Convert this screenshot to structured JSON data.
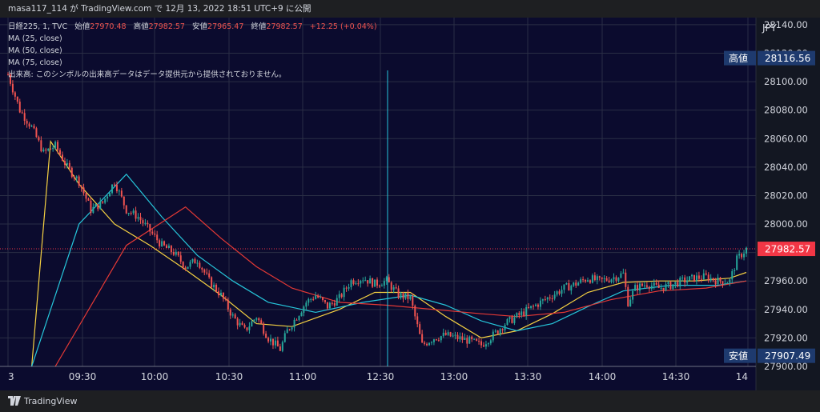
{
  "header": {
    "text": "masa117_114 が TradingView.com で 12月 13, 2022 18:51 UTC+9 に公開"
  },
  "legend": {
    "symbol": "日経225, 1, TVC",
    "open_label": "始値",
    "open_value": "27970.48",
    "high_label": "高値",
    "high_value": "27982.57",
    "low_label": "安値",
    "low_value": "27965.47",
    "close_label": "終値",
    "close_value": "27982.57",
    "change": "+12.25 (+0.04%)",
    "ma_lines": [
      "MA (25, close)",
      "MA (50, close)",
      "MA (75, close)"
    ],
    "volume_note": "出来高: このシンボルの出来高データはデータ提供元から提供されておりません。"
  },
  "footer": {
    "brand": "TradingView"
  },
  "colors": {
    "background": "#0b0b2e",
    "up": "#26a69a",
    "down": "#ef5350",
    "ma25": "#f5d142",
    "ma50": "#26c6da",
    "ma75": "#e53935",
    "price_tag": "#f23645",
    "level_tag": "#1e3a6e"
  },
  "chart_data": {
    "type": "candlestick",
    "currency": "JPY",
    "x_ticks": [
      "3",
      "09:30",
      "10:00",
      "10:30",
      "11:00",
      "12:30",
      "13:00",
      "13:30",
      "14:00",
      "14:30",
      "14"
    ],
    "y_ticks": [
      27900,
      27920,
      27940,
      27960,
      27980,
      28000,
      28020,
      28040,
      28060,
      28080,
      28100,
      28120,
      28140
    ],
    "ylim": [
      27900,
      28145
    ],
    "current_price": 27982.57,
    "high_marker": {
      "label": "高値",
      "value": 28116.56
    },
    "low_marker": {
      "label": "安値",
      "value": 27907.49
    },
    "price_path": [
      [
        0,
        28105
      ],
      [
        5,
        28080
      ],
      [
        10,
        28068
      ],
      [
        15,
        28050
      ],
      [
        20,
        28055
      ],
      [
        25,
        28040
      ],
      [
        30,
        28030
      ],
      [
        35,
        28010
      ],
      [
        40,
        28015
      ],
      [
        45,
        28030
      ],
      [
        50,
        28010
      ],
      [
        55,
        28005
      ],
      [
        60,
        27995
      ],
      [
        65,
        27985
      ],
      [
        70,
        27980
      ],
      [
        75,
        27970
      ],
      [
        80,
        27975
      ],
      [
        85,
        27960
      ],
      [
        90,
        27950
      ],
      [
        95,
        27935
      ],
      [
        100,
        27925
      ],
      [
        105,
        27935
      ],
      [
        110,
        27920
      ],
      [
        115,
        27912
      ],
      [
        118,
        27925
      ],
      [
        122,
        27935
      ],
      [
        126,
        27945
      ],
      [
        130,
        27950
      ],
      [
        135,
        27942
      ],
      [
        140,
        27948
      ],
      [
        145,
        27960
      ],
      [
        150,
        27962
      ],
      [
        155,
        27958
      ],
      [
        160,
        27960
      ],
      [
        165,
        27950
      ],
      [
        170,
        27948
      ],
      [
        175,
        27915
      ],
      [
        180,
        27920
      ],
      [
        185,
        27922
      ],
      [
        190,
        27920
      ],
      [
        195,
        27918
      ],
      [
        200,
        27915
      ],
      [
        205,
        27922
      ],
      [
        210,
        27930
      ],
      [
        215,
        27935
      ],
      [
        220,
        27940
      ],
      [
        225,
        27945
      ],
      [
        230,
        27950
      ],
      [
        235,
        27955
      ],
      [
        240,
        27958
      ],
      [
        245,
        27962
      ],
      [
        250,
        27960
      ],
      [
        255,
        27962
      ],
      [
        260,
        27965
      ],
      [
        262,
        27945
      ],
      [
        265,
        27955
      ],
      [
        270,
        27958
      ],
      [
        275,
        27955
      ],
      [
        280,
        27957
      ],
      [
        285,
        27960
      ],
      [
        290,
        27962
      ],
      [
        295,
        27963
      ],
      [
        300,
        27960
      ],
      [
        305,
        27960
      ],
      [
        308,
        27975
      ],
      [
        312,
        27982.57
      ]
    ],
    "series": [
      {
        "name": "MA (25, close)",
        "values": [
          [
            10,
            27900
          ],
          [
            18,
            28058
          ],
          [
            30,
            28028
          ],
          [
            45,
            28000
          ],
          [
            60,
            27985
          ],
          [
            75,
            27968
          ],
          [
            90,
            27950
          ],
          [
            105,
            27930
          ],
          [
            120,
            27928
          ],
          [
            140,
            27940
          ],
          [
            155,
            27952
          ],
          [
            170,
            27952
          ],
          [
            185,
            27935
          ],
          [
            200,
            27920
          ],
          [
            215,
            27925
          ],
          [
            230,
            27937
          ],
          [
            245,
            27952
          ],
          [
            260,
            27959
          ],
          [
            275,
            27960
          ],
          [
            290,
            27960
          ],
          [
            305,
            27962
          ],
          [
            312,
            27966
          ]
        ]
      },
      {
        "name": "MA (50, close)",
        "values": [
          [
            10,
            27900
          ],
          [
            30,
            28000
          ],
          [
            50,
            28035
          ],
          [
            65,
            28005
          ],
          [
            80,
            27978
          ],
          [
            95,
            27960
          ],
          [
            110,
            27945
          ],
          [
            130,
            27938
          ],
          [
            150,
            27945
          ],
          [
            170,
            27950
          ],
          [
            185,
            27943
          ],
          [
            200,
            27932
          ],
          [
            215,
            27925
          ],
          [
            230,
            27930
          ],
          [
            245,
            27942
          ],
          [
            260,
            27953
          ],
          [
            280,
            27957
          ],
          [
            300,
            27957
          ],
          [
            312,
            27960
          ]
        ]
      },
      {
        "name": "MA (75, close)",
        "values": [
          [
            20,
            27900
          ],
          [
            50,
            27985
          ],
          [
            75,
            28012
          ],
          [
            90,
            27990
          ],
          [
            105,
            27970
          ],
          [
            120,
            27955
          ],
          [
            140,
            27945
          ],
          [
            160,
            27943
          ],
          [
            180,
            27940
          ],
          [
            200,
            27937
          ],
          [
            215,
            27935
          ],
          [
            235,
            27938
          ],
          [
            255,
            27947
          ],
          [
            275,
            27953
          ],
          [
            295,
            27955
          ],
          [
            312,
            27960
          ]
        ]
      }
    ]
  }
}
